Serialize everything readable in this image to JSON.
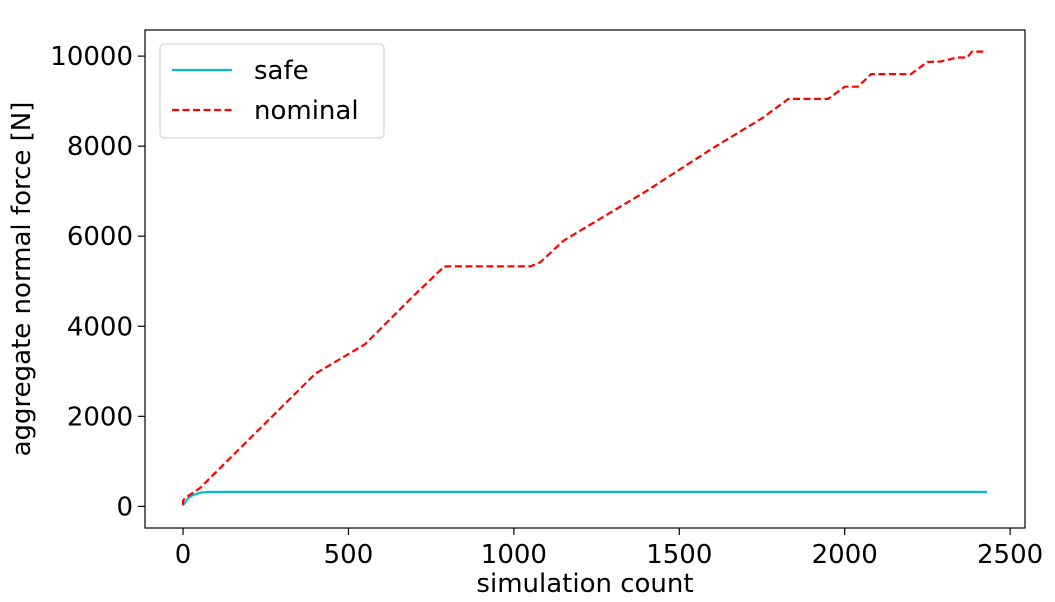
{
  "chart_data": {
    "type": "line",
    "xlabel": "simulation count",
    "ylabel": "aggregate normal force [N]",
    "xlim": [
      -115,
      2545
    ],
    "ylim": [
      -480,
      10580
    ],
    "xticks": [
      0,
      500,
      1000,
      1500,
      2000,
      2500
    ],
    "yticks": [
      0,
      2000,
      4000,
      6000,
      8000,
      10000
    ],
    "xtick_labels": [
      "0",
      "500",
      "1000",
      "1500",
      "2000",
      "2500"
    ],
    "ytick_labels": [
      "0",
      "2000",
      "4000",
      "6000",
      "8000",
      "10000"
    ],
    "grid": false,
    "legend_position": "top-left",
    "series": [
      {
        "name": "safe",
        "color": "#00BFC4",
        "style": "solid",
        "points": [
          [
            0,
            20
          ],
          [
            15,
            180
          ],
          [
            30,
            250
          ],
          [
            50,
            300
          ],
          [
            70,
            320
          ],
          [
            100,
            322
          ],
          [
            500,
            322
          ],
          [
            1000,
            322
          ],
          [
            1500,
            322
          ],
          [
            2000,
            322
          ],
          [
            2430,
            322
          ]
        ]
      },
      {
        "name": "nominal",
        "color": "#FF0000",
        "style": "dashed",
        "points": [
          [
            0,
            30
          ],
          [
            0,
            120
          ],
          [
            5,
            180
          ],
          [
            50,
            400
          ],
          [
            400,
            2950
          ],
          [
            550,
            3600
          ],
          [
            700,
            4700
          ],
          [
            790,
            5330
          ],
          [
            1050,
            5330
          ],
          [
            1080,
            5420
          ],
          [
            1150,
            5900
          ],
          [
            1400,
            7000
          ],
          [
            1600,
            7950
          ],
          [
            1750,
            8620
          ],
          [
            1830,
            9050
          ],
          [
            1950,
            9050
          ],
          [
            2000,
            9320
          ],
          [
            2040,
            9320
          ],
          [
            2080,
            9600
          ],
          [
            2200,
            9600
          ],
          [
            2250,
            9870
          ],
          [
            2290,
            9880
          ],
          [
            2340,
            9970
          ],
          [
            2370,
            9970
          ],
          [
            2385,
            10100
          ],
          [
            2430,
            10100
          ]
        ]
      }
    ]
  }
}
